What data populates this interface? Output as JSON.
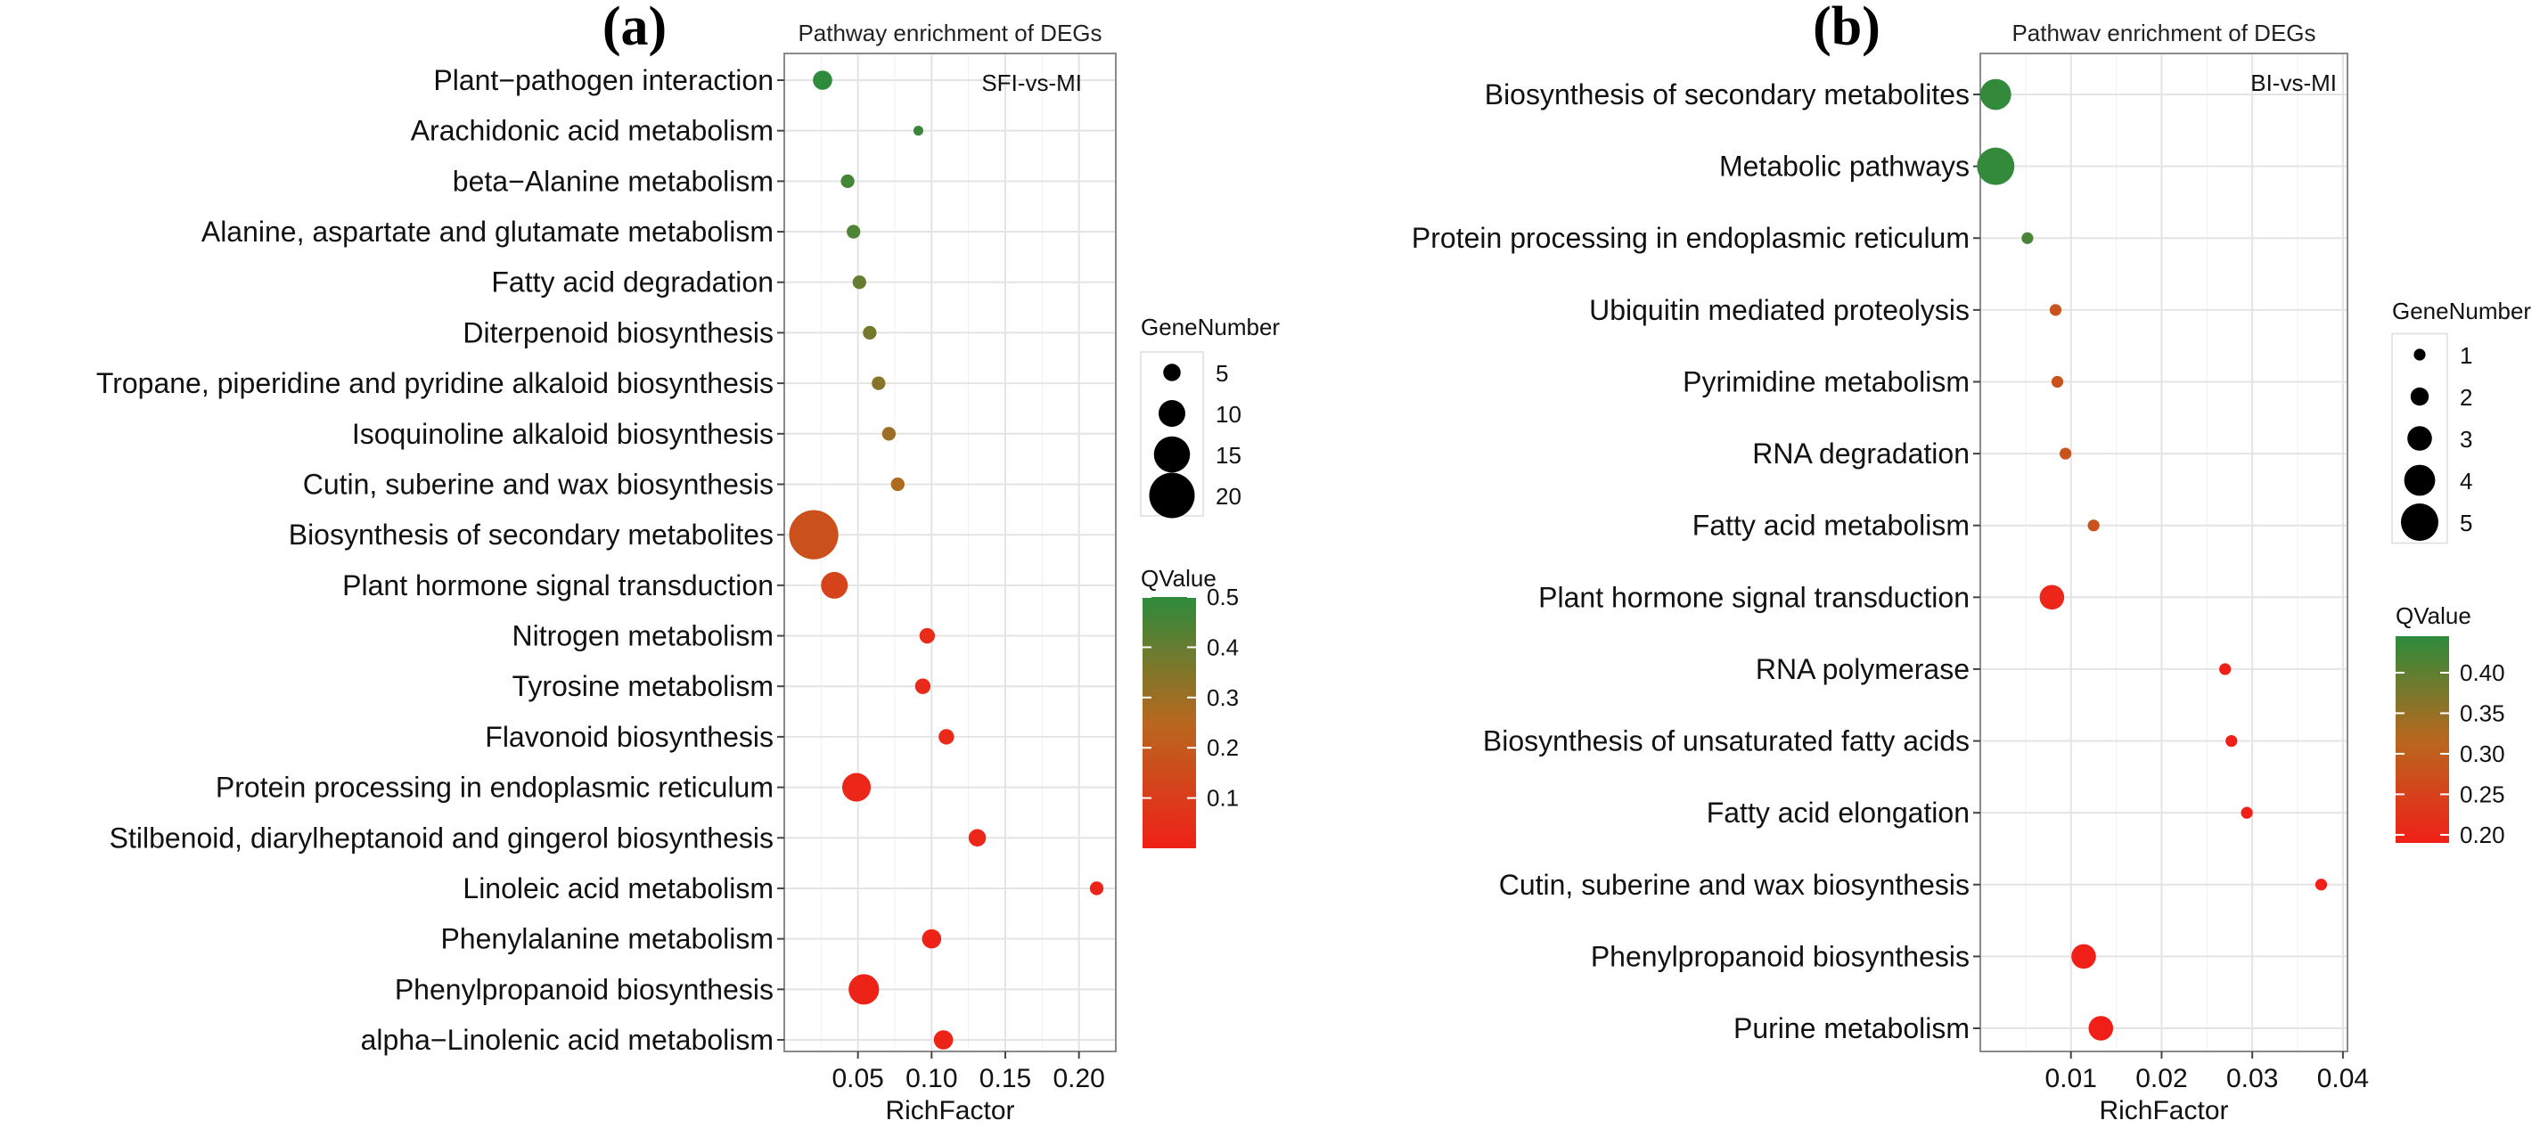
{
  "chart_data": [
    {
      "panel_label": "(a)",
      "type": "scatter",
      "title": "Pathway enrichment of DEGs",
      "annotation": "SFI-vs-MI",
      "xlabel": "RichFactor",
      "xlim": [
        0.0,
        0.225
      ],
      "xticks": [
        0.05,
        0.1,
        0.15,
        0.2
      ],
      "xtick_labels": [
        "0.05",
        "0.10",
        "0.15",
        "0.20"
      ],
      "grid": true,
      "size_legend": {
        "title": "GeneNumber",
        "values": [
          5,
          10,
          15,
          20
        ],
        "labels": [
          "5",
          "10",
          "15",
          "20"
        ]
      },
      "color_legend": {
        "title": "QValue",
        "range": [
          0.0,
          0.5
        ],
        "ticks": [
          0.1,
          0.2,
          0.3,
          0.4,
          0.5
        ],
        "tick_labels": [
          "0.1",
          "0.2",
          "0.3",
          "0.4",
          "0.5"
        ],
        "colors": [
          "#e8221f",
          "#2e8b3c"
        ]
      },
      "points": [
        {
          "pathway": "Plant−pathogen interaction",
          "rich_factor": 0.026,
          "gene_number": 6,
          "qvalue": 0.5
        },
        {
          "pathway": "Arachidonic acid metabolism",
          "rich_factor": 0.091,
          "gene_number": 1,
          "qvalue": 0.48
        },
        {
          "pathway": "beta−Alanine metabolism",
          "rich_factor": 0.043,
          "gene_number": 3,
          "qvalue": 0.46
        },
        {
          "pathway": "Alanine, aspartate and glutamate metabolism",
          "rich_factor": 0.047,
          "gene_number": 3,
          "qvalue": 0.44
        },
        {
          "pathway": "Fatty acid degradation",
          "rich_factor": 0.051,
          "gene_number": 3,
          "qvalue": 0.4
        },
        {
          "pathway": "Diterpenoid biosynthesis",
          "rich_factor": 0.058,
          "gene_number": 3,
          "qvalue": 0.37
        },
        {
          "pathway": "Tropane, piperidine and pyridine alkaloid biosynthesis",
          "rich_factor": 0.064,
          "gene_number": 3,
          "qvalue": 0.34
        },
        {
          "pathway": "Isoquinoline alkaloid biosynthesis",
          "rich_factor": 0.071,
          "gene_number": 3,
          "qvalue": 0.3
        },
        {
          "pathway": "Cutin, suberine and wax biosynthesis",
          "rich_factor": 0.077,
          "gene_number": 3,
          "qvalue": 0.27
        },
        {
          "pathway": "Biosynthesis of secondary metabolites",
          "rich_factor": 0.02,
          "gene_number": 22,
          "qvalue": 0.17
        },
        {
          "pathway": "Plant hormone signal transduction",
          "rich_factor": 0.034,
          "gene_number": 10,
          "qvalue": 0.12
        },
        {
          "pathway": "Nitrogen metabolism",
          "rich_factor": 0.097,
          "gene_number": 4,
          "qvalue": 0.04
        },
        {
          "pathway": "Tyrosine metabolism",
          "rich_factor": 0.094,
          "gene_number": 4,
          "qvalue": 0.03
        },
        {
          "pathway": "Flavonoid biosynthesis",
          "rich_factor": 0.11,
          "gene_number": 4,
          "qvalue": 0.03
        },
        {
          "pathway": "Protein processing in endoplasmic reticulum",
          "rich_factor": 0.049,
          "gene_number": 11,
          "qvalue": 0.02
        },
        {
          "pathway": "Stilbenoid, diarylheptanoid and gingerol biosynthesis",
          "rich_factor": 0.131,
          "gene_number": 5,
          "qvalue": 0.02
        },
        {
          "pathway": "Linoleic acid metabolism",
          "rich_factor": 0.212,
          "gene_number": 3,
          "qvalue": 0.01
        },
        {
          "pathway": "Phenylalanine metabolism",
          "rich_factor": 0.1,
          "gene_number": 6,
          "qvalue": 0.01
        },
        {
          "pathway": "Phenylpropanoid biosynthesis",
          "rich_factor": 0.054,
          "gene_number": 12,
          "qvalue": 0.01
        },
        {
          "pathway": "alpha−Linolenic acid metabolism",
          "rich_factor": 0.108,
          "gene_number": 6,
          "qvalue": 0.01
        }
      ]
    },
    {
      "panel_label": "(b)",
      "type": "scatter",
      "title": "Pathwav enrichment of DEGs",
      "annotation": "BI-vs-MI",
      "xlabel": "RichFactor",
      "xlim": [
        0.0,
        0.0405
      ],
      "xticks": [
        0.01,
        0.02,
        0.03,
        0.04
      ],
      "xtick_labels": [
        "0.01",
        "0.02",
        "0.03",
        "0.04"
      ],
      "grid": true,
      "size_legend": {
        "title": "GeneNumber",
        "values": [
          1,
          2,
          3,
          4,
          5
        ],
        "labels": [
          "1",
          "2",
          "3",
          "4",
          "5"
        ]
      },
      "color_legend": {
        "title": "QValue",
        "range": [
          0.19,
          0.445
        ],
        "ticks": [
          0.2,
          0.25,
          0.3,
          0.35,
          0.4
        ],
        "tick_labels": [
          "0.20",
          "0.25",
          "0.30",
          "0.35",
          "0.40"
        ],
        "colors": [
          "#e8221f",
          "#2e8b3c"
        ]
      },
      "points": [
        {
          "pathway": "Biosynthesis of secondary metabolites",
          "rich_factor": 0.0017,
          "gene_number": 4,
          "qvalue": 0.44
        },
        {
          "pathway": "Metabolic pathways",
          "rich_factor": 0.0017,
          "gene_number": 5,
          "qvalue": 0.44
        },
        {
          "pathway": "Protein processing in endoplasmic reticulum",
          "rich_factor": 0.0052,
          "gene_number": 1,
          "qvalue": 0.42
        },
        {
          "pathway": "Ubiquitin mediated proteolysis",
          "rich_factor": 0.0083,
          "gene_number": 1,
          "qvalue": 0.28
        },
        {
          "pathway": "Pyrimidine metabolism",
          "rich_factor": 0.0085,
          "gene_number": 1,
          "qvalue": 0.28
        },
        {
          "pathway": "RNA degradation",
          "rich_factor": 0.0094,
          "gene_number": 1,
          "qvalue": 0.28
        },
        {
          "pathway": "Fatty acid metabolism",
          "rich_factor": 0.0125,
          "gene_number": 1,
          "qvalue": 0.28
        },
        {
          "pathway": "Plant hormone signal transduction",
          "rich_factor": 0.0079,
          "gene_number": 3,
          "qvalue": 0.2
        },
        {
          "pathway": "RNA polymerase",
          "rich_factor": 0.027,
          "gene_number": 1,
          "qvalue": 0.19
        },
        {
          "pathway": "Biosynthesis of unsaturated fatty acids",
          "rich_factor": 0.0277,
          "gene_number": 1,
          "qvalue": 0.19
        },
        {
          "pathway": "Fatty acid elongation",
          "rich_factor": 0.0294,
          "gene_number": 1,
          "qvalue": 0.19
        },
        {
          "pathway": "Cutin, suberine and wax biosynthesis",
          "rich_factor": 0.0376,
          "gene_number": 1,
          "qvalue": 0.19
        },
        {
          "pathway": "Phenylpropanoid biosynthesis",
          "rich_factor": 0.0114,
          "gene_number": 3,
          "qvalue": 0.19
        },
        {
          "pathway": "Purine metabolism",
          "rich_factor": 0.0133,
          "gene_number": 3,
          "qvalue": 0.19
        }
      ]
    }
  ]
}
